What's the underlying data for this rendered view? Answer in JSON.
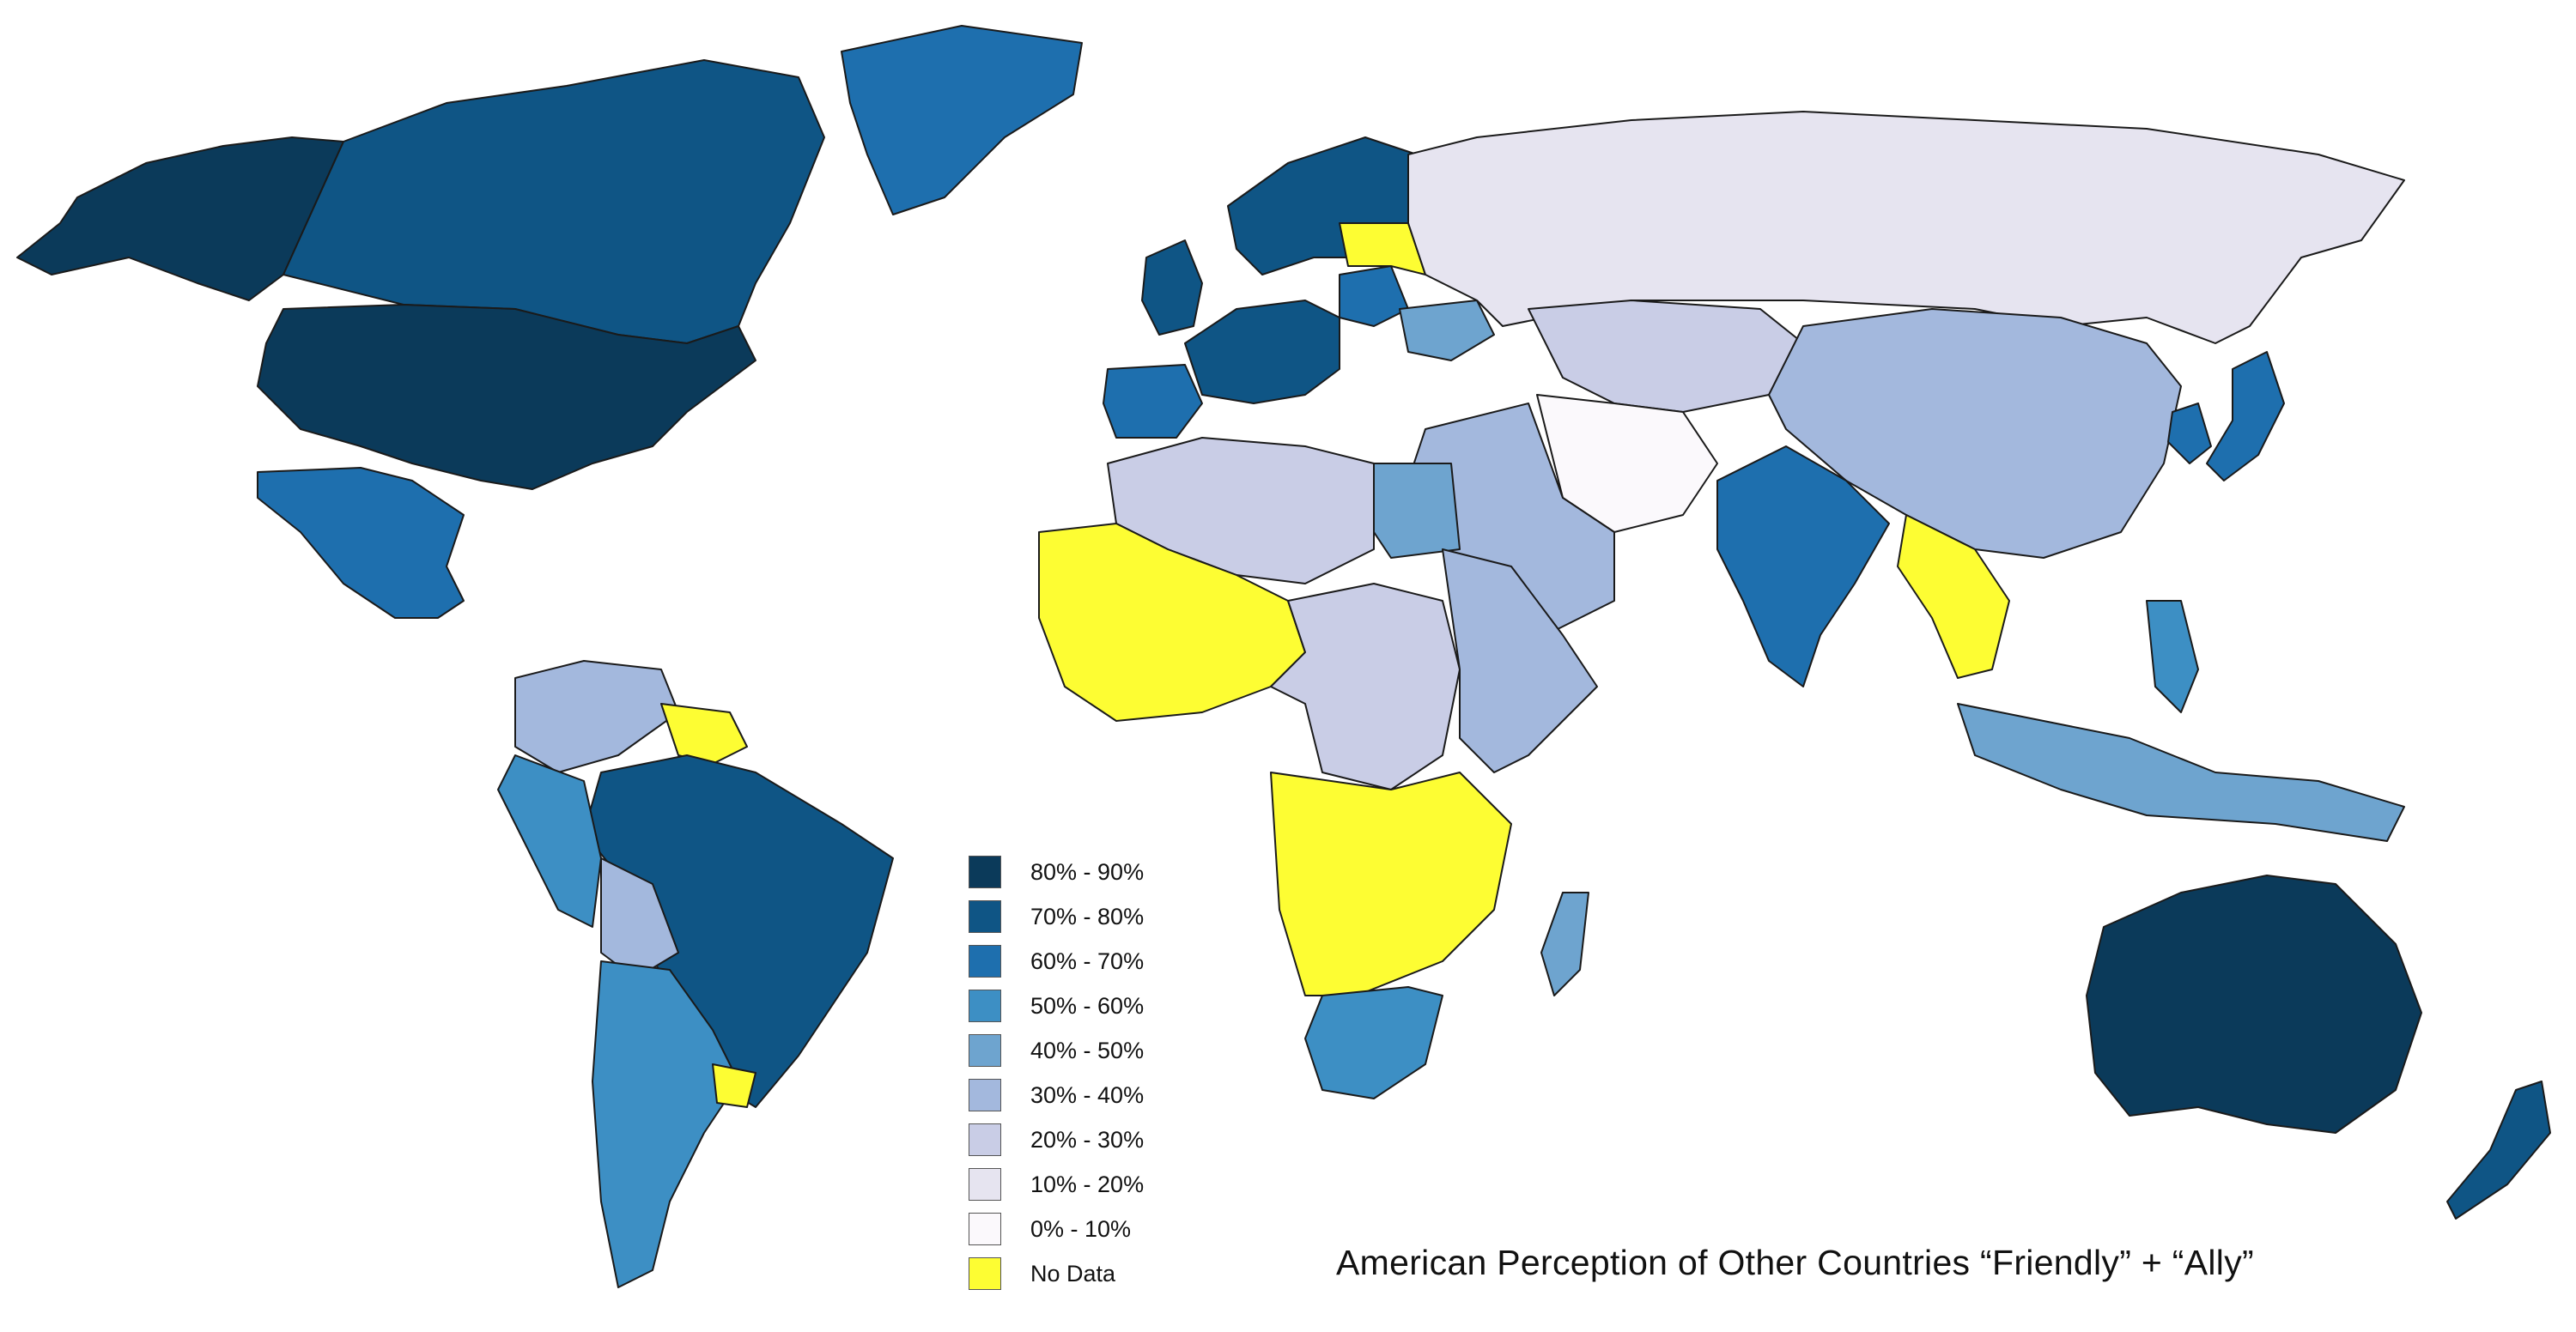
{
  "title": "American Perception of Other Countries “Friendly” + “Ally”",
  "legend": [
    {
      "label": "80% - 90%",
      "color": "#0b3a5a"
    },
    {
      "label": "70% - 80%",
      "color": "#0f5585"
    },
    {
      "label": "60% - 70%",
      "color": "#1e6fae"
    },
    {
      "label": "50% - 60%",
      "color": "#3d8fc4"
    },
    {
      "label": "40% - 50%",
      "color": "#6ea4cf"
    },
    {
      "label": "30% - 40%",
      "color": "#a3b8dd"
    },
    {
      "label": "20% - 30%",
      "color": "#c9cde6"
    },
    {
      "label": "10% - 20%",
      "color": "#e6e4f0"
    },
    {
      "label": "0% - 10%",
      "color": "#fbf9fc"
    },
    {
      "label": "No Data",
      "color": "#fdfd33"
    }
  ],
  "regions": [
    {
      "name": "united-states",
      "band": "80% - 90%"
    },
    {
      "name": "alaska",
      "band": "80% - 90%"
    },
    {
      "name": "canada",
      "band": "70% - 80%"
    },
    {
      "name": "greenland",
      "band": "60% - 70%"
    },
    {
      "name": "mexico",
      "band": "60% - 70%"
    },
    {
      "name": "brazil",
      "band": "70% - 80%"
    },
    {
      "name": "argentina",
      "band": "50% - 60%"
    },
    {
      "name": "colombia-venezuela",
      "band": "30% - 40%"
    },
    {
      "name": "peru",
      "band": "50% - 60%"
    },
    {
      "name": "bolivia",
      "band": "30% - 40%"
    },
    {
      "name": "guianas",
      "band": "No Data"
    },
    {
      "name": "uruguay",
      "band": "No Data"
    },
    {
      "name": "uk-ireland",
      "band": "70% - 80%"
    },
    {
      "name": "western-europe",
      "band": "70% - 80%"
    },
    {
      "name": "iberia",
      "band": "60% - 70%"
    },
    {
      "name": "scandinavia",
      "band": "70% - 80%"
    },
    {
      "name": "poland",
      "band": "60% - 70%"
    },
    {
      "name": "belarus-baltics",
      "band": "No Data"
    },
    {
      "name": "ukraine",
      "band": "40% - 50%"
    },
    {
      "name": "russia",
      "band": "10% - 20%"
    },
    {
      "name": "central-asia",
      "band": "20% - 30%"
    },
    {
      "name": "china",
      "band": "30% - 40%"
    },
    {
      "name": "japan",
      "band": "60% - 70%"
    },
    {
      "name": "korea",
      "band": "60% - 70%"
    },
    {
      "name": "india",
      "band": "60% - 70%"
    },
    {
      "name": "middle-east",
      "band": "30% - 40%"
    },
    {
      "name": "iran-afghanistan",
      "band": "0% - 10%"
    },
    {
      "name": "north-africa",
      "band": "20% - 30%"
    },
    {
      "name": "egypt",
      "band": "40% - 50%"
    },
    {
      "name": "west-africa",
      "band": "No Data"
    },
    {
      "name": "central-africa",
      "band": "20% - 30%"
    },
    {
      "name": "east-africa",
      "band": "30% - 40%"
    },
    {
      "name": "southern-africa",
      "band": "No Data"
    },
    {
      "name": "south-africa",
      "band": "50% - 60%"
    },
    {
      "name": "madagascar",
      "band": "40% - 50%"
    },
    {
      "name": "southeast-asia",
      "band": "No Data"
    },
    {
      "name": "indonesia",
      "band": "40% - 50%"
    },
    {
      "name": "philippines",
      "band": "50% - 60%"
    },
    {
      "name": "australia",
      "band": "80% - 90%"
    },
    {
      "name": "new-zealand",
      "band": "70% - 80%"
    }
  ]
}
